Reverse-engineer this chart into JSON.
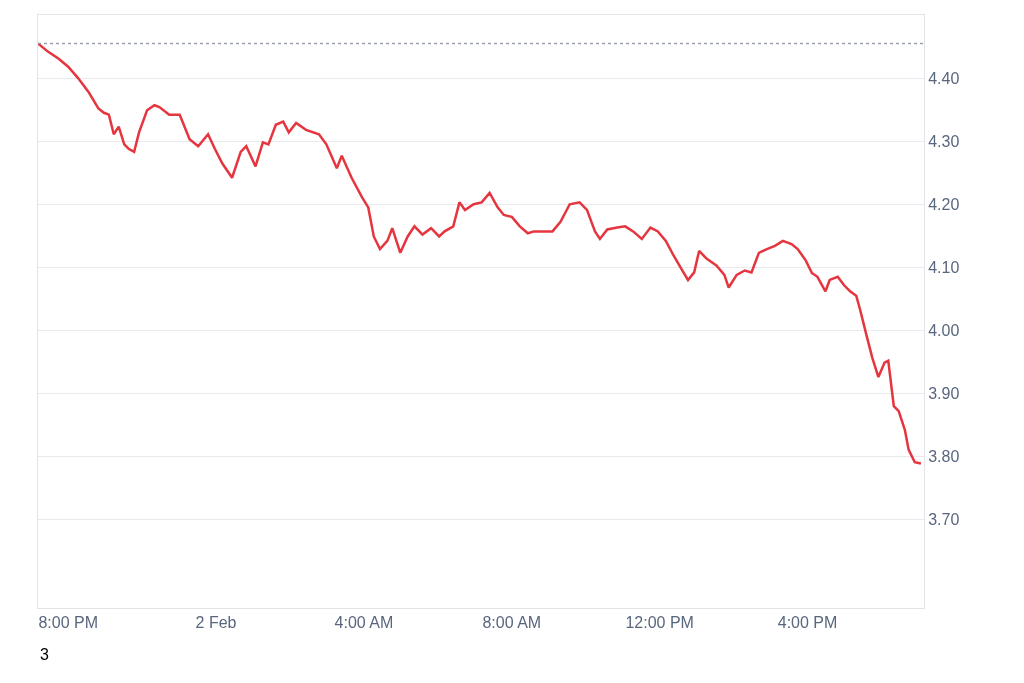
{
  "chart_data": {
    "type": "line",
    "x": [
      "--02-01T19:11",
      "--02-01T19:27",
      "--02-01T19:44",
      "--02-01T20:00",
      "--02-01T20:16",
      "--02-01T20:33",
      "--02-01T20:49",
      "--02-01T20:58",
      "--02-01T21:06",
      "--02-01T21:14",
      "--02-01T21:22",
      "--02-01T21:31",
      "--02-01T21:38",
      "--02-01T21:47",
      "--02-01T21:55",
      "--02-01T22:08",
      "--02-01T22:20",
      "--02-01T22:28",
      "--02-01T22:44",
      "--02-01T23:01",
      "--02-01T23:17",
      "--02-01T23:31",
      "--02-01T23:47",
      "--02-01T23:58",
      "--02-02T00:10",
      "--02-02T00:26",
      "--02-02T00:40",
      "--02-02T00:49",
      "--02-02T01:04",
      "--02-02T01:16",
      "--02-02T01:25",
      "--02-02T01:37",
      "--02-02T01:49",
      "--02-02T01:58",
      "--02-02T02:10",
      "--02-02T02:26",
      "--02-02T02:47",
      "--02-02T02:59",
      "--02-02T03:16",
      "--02-02T03:24",
      "--02-02T03:40",
      "--02-02T03:57",
      "--02-02T04:07",
      "--02-02T04:16",
      "--02-02T04:26",
      "--02-02T04:38",
      "--02-02T04:46",
      "--02-02T04:59",
      "--02-02T05:11",
      "--02-02T05:22",
      "--02-02T05:35",
      "--02-02T05:49",
      "--02-02T06:02",
      "--02-02T06:11",
      "--02-02T06:25",
      "--02-02T06:35",
      "--02-02T06:44",
      "--02-02T06:58",
      "--02-02T07:11",
      "--02-02T07:24",
      "--02-02T07:37",
      "--02-02T07:47",
      "--02-02T08:00",
      "--02-02T08:13",
      "--02-02T08:26",
      "--02-02T08:36",
      "--02-02T08:53",
      "--02-02T09:06",
      "--02-02T09:19",
      "--02-02T09:34",
      "--02-02T09:50",
      "--02-02T10:02",
      "--02-02T10:15",
      "--02-02T10:23",
      "--02-02T10:35",
      "--02-02T10:51",
      "--02-02T11:04",
      "--02-02T11:17",
      "--02-02T11:31",
      "--02-02T11:45",
      "--02-02T11:57",
      "--02-02T12:10",
      "--02-02T12:23",
      "--02-02T12:35",
      "--02-02T12:46",
      "--02-02T12:56",
      "--02-02T13:04",
      "--02-02T13:16",
      "--02-02T13:32",
      "--02-02T13:45",
      "--02-02T13:52",
      "--02-02T14:05",
      "--02-02T14:18",
      "--02-02T14:29",
      "--02-02T14:41",
      "--02-02T14:54",
      "--02-02T15:07",
      "--02-02T15:20",
      "--02-02T15:34",
      "--02-02T15:44",
      "--02-02T15:57",
      "--02-02T16:07",
      "--02-02T16:16",
      "--02-02T16:29",
      "--02-02T16:36",
      "--02-02T16:49",
      "--02-02T16:59",
      "--02-02T17:09",
      "--02-02T17:19",
      "--02-02T17:25",
      "--02-02T17:35",
      "--02-02T17:45",
      "--02-02T17:55",
      "--02-02T18:05",
      "--02-02T18:11",
      "--02-02T18:20",
      "--02-02T18:28",
      "--02-02T18:38",
      "--02-02T18:44",
      "--02-02T18:54",
      "--02-02T19:04"
    ],
    "series": [
      {
        "color": "#e5353f",
        "values": [
          4.455,
          4.442,
          4.431,
          4.418,
          4.4,
          4.378,
          4.352,
          4.345,
          4.342,
          4.311,
          4.323,
          4.295,
          4.288,
          4.283,
          4.314,
          4.349,
          4.357,
          4.354,
          4.342,
          4.342,
          4.303,
          4.292,
          4.311,
          4.288,
          4.265,
          4.242,
          4.283,
          4.292,
          4.26,
          4.298,
          4.295,
          4.326,
          4.331,
          4.314,
          4.329,
          4.318,
          4.311,
          4.295,
          4.257,
          4.277,
          4.242,
          4.211,
          4.195,
          4.149,
          4.129,
          4.142,
          4.162,
          4.123,
          4.149,
          4.165,
          4.152,
          4.162,
          4.149,
          4.157,
          4.165,
          4.203,
          4.191,
          4.2,
          4.203,
          4.218,
          4.195,
          4.183,
          4.18,
          4.165,
          4.154,
          4.157,
          4.157,
          4.157,
          4.172,
          4.2,
          4.203,
          4.191,
          4.157,
          4.145,
          4.16,
          4.163,
          4.165,
          4.157,
          4.145,
          4.163,
          4.157,
          4.142,
          4.118,
          4.098,
          4.08,
          4.092,
          4.126,
          4.114,
          4.103,
          4.088,
          4.068,
          4.088,
          4.095,
          4.092,
          4.123,
          4.129,
          4.134,
          4.142,
          4.137,
          4.129,
          4.111,
          4.091,
          4.085,
          4.062,
          4.08,
          4.085,
          4.072,
          4.062,
          4.055,
          4.034,
          3.995,
          3.957,
          3.926,
          3.949,
          3.952,
          3.88,
          3.872,
          3.842,
          3.811,
          3.791,
          3.789
        ]
      }
    ],
    "xlim": [
      "--02-01T19:11",
      "--02-02T19:09"
    ],
    "xticks": [
      {
        "value": "--02-01T20:00",
        "label": "8:00 PM"
      },
      {
        "value": "--02-02T00:00",
        "label": "2 Feb"
      },
      {
        "value": "--02-02T04:00",
        "label": "4:00 AM"
      },
      {
        "value": "--02-02T08:00",
        "label": "8:00 AM"
      },
      {
        "value": "--02-02T12:00",
        "label": "12:00 PM"
      },
      {
        "value": "--02-02T16:00",
        "label": "4:00 PM"
      }
    ],
    "ylim": [
      3.56,
      4.5
    ],
    "yticks": [
      {
        "value": 3.7,
        "label": "3.70"
      },
      {
        "value": 3.8,
        "label": "3.80"
      },
      {
        "value": 3.9,
        "label": "3.90"
      },
      {
        "value": 4.0,
        "label": "4.00"
      },
      {
        "value": 4.1,
        "label": "4.10"
      },
      {
        "value": 4.2,
        "label": "4.20"
      },
      {
        "value": 4.3,
        "label": "4.30"
      },
      {
        "value": 4.4,
        "label": "4.40"
      }
    ],
    "ref_lines": [
      {
        "axis": "y",
        "value": 4.455,
        "color": "#9aa0aa",
        "line_style": "dotted"
      }
    ],
    "annotations": [
      "3"
    ],
    "grid": "y",
    "marker": "none",
    "line_style": "solid"
  }
}
